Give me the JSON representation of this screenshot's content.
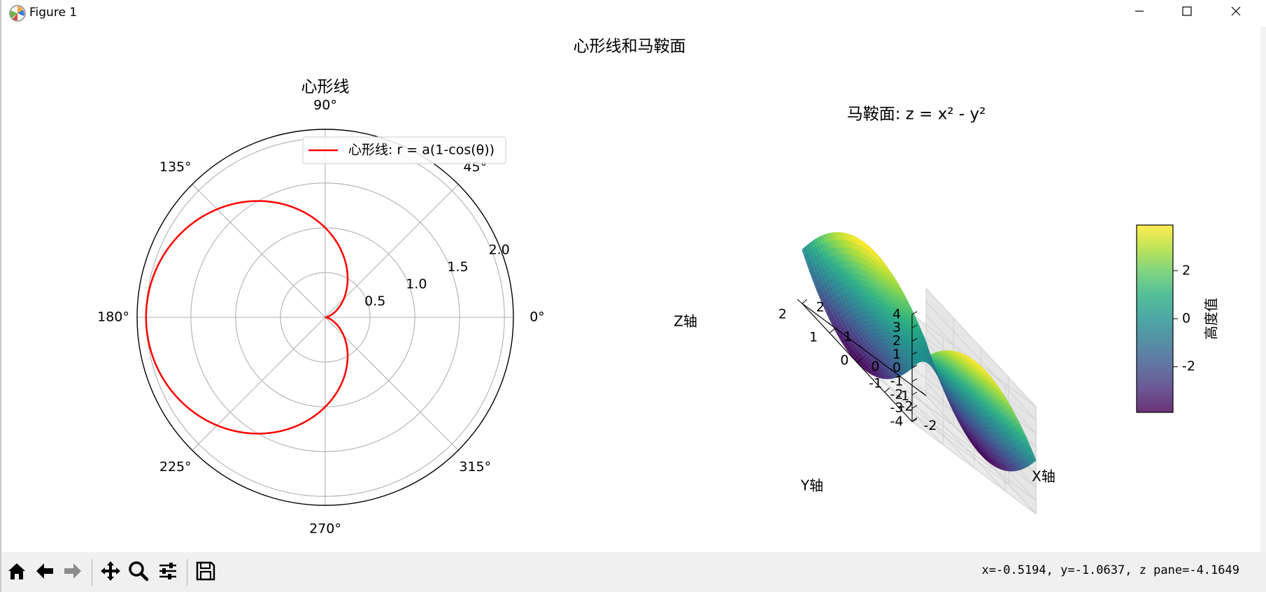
{
  "window": {
    "title": "Figure 1",
    "icons": [
      "matplotlib-logo-icon",
      "minimize-icon",
      "maximize-icon",
      "close-icon"
    ]
  },
  "figure": {
    "suptitle": "心形线和马鞍面"
  },
  "toolbar": {
    "buttons": [
      "home-icon",
      "back-icon",
      "forward-icon",
      "pan-icon",
      "zoom-icon",
      "configure-subplots-icon",
      "save-icon"
    ],
    "coordinate_readout": "x=-0.5194,  y=-1.0637,  z pane=-4.1649"
  },
  "chart_data": [
    {
      "type": "line",
      "projection": "polar",
      "title": "心形线",
      "series": [
        {
          "name": "心形线: r = a(1-cos(θ))",
          "color": "#ff0000",
          "a": 1,
          "formula": "r = a(1-cos(θ))"
        }
      ],
      "angle_ticks": [
        "0°",
        "45°",
        "90°",
        "135°",
        "180°",
        "225°",
        "270°",
        "315°"
      ],
      "radial_ticks": [
        "0.5",
        "1.0",
        "1.5",
        "2.0"
      ],
      "radial_tick_values": [
        0.5,
        1.0,
        1.5,
        2.0
      ],
      "rlim": [
        0,
        2.1
      ],
      "grid": true,
      "legend": "upper-right"
    },
    {
      "type": "surface",
      "title": "马鞍面: z = x² - y²",
      "formula": "z = x² - y²",
      "xlabel": "X轴",
      "ylabel": "Y轴",
      "zlabel": "Z轴",
      "x_ticks": [
        "-2",
        "-1",
        "0",
        "1",
        "2"
      ],
      "y_ticks": [
        "-2",
        "-1",
        "0",
        "1",
        "2"
      ],
      "z_ticks": [
        "4",
        "3",
        "2",
        "1",
        "0",
        "-1",
        "-2",
        "-3",
        "-4"
      ],
      "xlim": [
        -2,
        2
      ],
      "ylim": [
        -2,
        2
      ],
      "zlim": [
        -4,
        4
      ],
      "colormap": "viridis",
      "colorbar": {
        "label": "高度值",
        "ticks": [
          "2",
          "0",
          "-2"
        ],
        "range": [
          -3.9,
          3.9
        ]
      }
    }
  ]
}
